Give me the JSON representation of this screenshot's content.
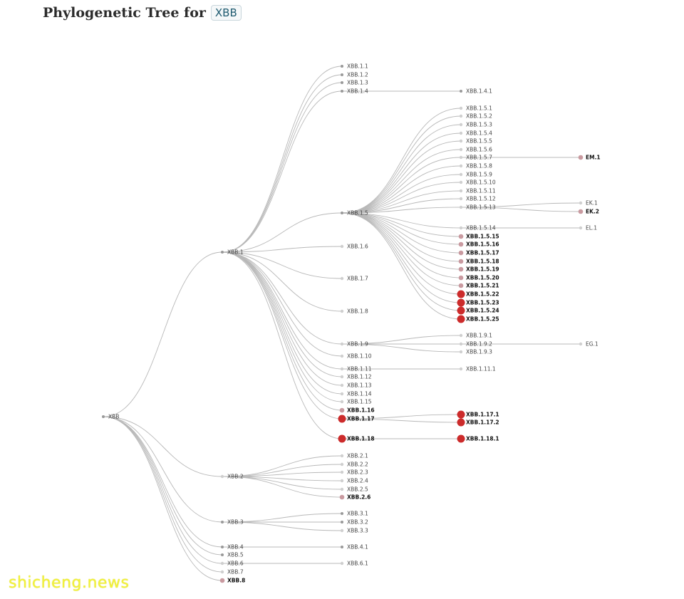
{
  "title": {
    "text": "Phylogenetic Tree for",
    "tag": "XBB"
  },
  "watermark": "shicheng.news",
  "colors": {
    "edge": "#b8b8b8",
    "node_small": "#999999",
    "node_light": "#cfcfcf",
    "node_pink": "#c99aa0",
    "node_red": "#cc2b2b"
  },
  "tree": {
    "name": "XBB",
    "kind": "small",
    "children": [
      {
        "name": "XBB.1",
        "kind": "small",
        "children": [
          {
            "name": "XBB.1.1",
            "kind": "small"
          },
          {
            "name": "XBB.1.2",
            "kind": "small"
          },
          {
            "name": "XBB.1.3",
            "kind": "small"
          },
          {
            "name": "XBB.1.4",
            "kind": "small",
            "children": [
              {
                "name": "XBB.1.4.1",
                "kind": "small"
              }
            ]
          },
          {
            "name": "XBB.1.5",
            "kind": "small",
            "children": [
              {
                "name": "XBB.1.5.1",
                "kind": "light"
              },
              {
                "name": "XBB.1.5.2",
                "kind": "light"
              },
              {
                "name": "XBB.1.5.3",
                "kind": "light"
              },
              {
                "name": "XBB.1.5.4",
                "kind": "light"
              },
              {
                "name": "XBB.1.5.5",
                "kind": "light"
              },
              {
                "name": "XBB.1.5.6",
                "kind": "light"
              },
              {
                "name": "XBB.1.5.7",
                "kind": "light",
                "children": [
                  {
                    "name": "EM.1",
                    "kind": "pink",
                    "bold": true
                  }
                ]
              },
              {
                "name": "XBB.1.5.8",
                "kind": "light"
              },
              {
                "name": "XBB.1.5.9",
                "kind": "light"
              },
              {
                "name": "XBB.1.5.10",
                "kind": "light"
              },
              {
                "name": "XBB.1.5.11",
                "kind": "light"
              },
              {
                "name": "XBB.1.5.12",
                "kind": "light"
              },
              {
                "name": "XBB.1.5.13",
                "kind": "light",
                "children": [
                  {
                    "name": "EK.1",
                    "kind": "light"
                  },
                  {
                    "name": "EK.2",
                    "kind": "pink",
                    "bold": true
                  }
                ]
              },
              {
                "name": "XBB.1.5.14",
                "kind": "light",
                "children": [
                  {
                    "name": "EL.1",
                    "kind": "light"
                  }
                ]
              },
              {
                "name": "XBB.1.5.15",
                "kind": "pink",
                "bold": true
              },
              {
                "name": "XBB.1.5.16",
                "kind": "pink",
                "bold": true
              },
              {
                "name": "XBB.1.5.17",
                "kind": "pink",
                "bold": true
              },
              {
                "name": "XBB.1.5.18",
                "kind": "pink",
                "bold": true
              },
              {
                "name": "XBB.1.5.19",
                "kind": "pink",
                "bold": true
              },
              {
                "name": "XBB.1.5.20",
                "kind": "pink",
                "bold": true
              },
              {
                "name": "XBB.1.5.21",
                "kind": "pink",
                "bold": true
              },
              {
                "name": "XBB.1.5.22",
                "kind": "red",
                "bold": true
              },
              {
                "name": "XBB.1.5.23",
                "kind": "red",
                "bold": true
              },
              {
                "name": "XBB.1.5.24",
                "kind": "red",
                "bold": true
              },
              {
                "name": "XBB.1.5.25",
                "kind": "red",
                "bold": true
              }
            ]
          },
          {
            "name": "XBB.1.6",
            "kind": "light"
          },
          {
            "name": "XBB.1.7",
            "kind": "light"
          },
          {
            "name": "XBB.1.8",
            "kind": "light"
          },
          {
            "name": "XBB.1.9",
            "kind": "light",
            "children": [
              {
                "name": "XBB.1.9.1",
                "kind": "light"
              },
              {
                "name": "XBB.1.9.2",
                "kind": "light",
                "children": [
                  {
                    "name": "EG.1",
                    "kind": "light"
                  }
                ]
              },
              {
                "name": "XBB.1.9.3",
                "kind": "light"
              }
            ]
          },
          {
            "name": "XBB.1.10",
            "kind": "light"
          },
          {
            "name": "XBB.1.11",
            "kind": "light",
            "children": [
              {
                "name": "XBB.1.11.1",
                "kind": "light"
              }
            ]
          },
          {
            "name": "XBB.1.12",
            "kind": "light"
          },
          {
            "name": "XBB.1.13",
            "kind": "light"
          },
          {
            "name": "XBB.1.14",
            "kind": "light"
          },
          {
            "name": "XBB.1.15",
            "kind": "light"
          },
          {
            "name": "XBB.1.16",
            "kind": "pink",
            "bold": true
          },
          {
            "name": "XBB.1.17",
            "kind": "red",
            "bold": true,
            "children": [
              {
                "name": "XBB.1.17.1",
                "kind": "red",
                "bold": true
              },
              {
                "name": "XBB.1.17.2",
                "kind": "red",
                "bold": true
              }
            ]
          },
          {
            "name": "XBB.1.18",
            "kind": "red",
            "bold": true,
            "children": [
              {
                "name": "XBB.1.18.1",
                "kind": "red",
                "bold": true
              }
            ]
          }
        ]
      },
      {
        "name": "XBB.2",
        "kind": "light",
        "children": [
          {
            "name": "XBB.2.1",
            "kind": "light"
          },
          {
            "name": "XBB.2.2",
            "kind": "light"
          },
          {
            "name": "XBB.2.3",
            "kind": "light"
          },
          {
            "name": "XBB.2.4",
            "kind": "light"
          },
          {
            "name": "XBB.2.5",
            "kind": "light"
          },
          {
            "name": "XBB.2.6",
            "kind": "pink",
            "bold": true
          }
        ]
      },
      {
        "name": "XBB.3",
        "kind": "small",
        "children": [
          {
            "name": "XBB.3.1",
            "kind": "small"
          },
          {
            "name": "XBB.3.2",
            "kind": "small"
          },
          {
            "name": "XBB.3.3",
            "kind": "light"
          }
        ]
      },
      {
        "name": "XBB.4",
        "kind": "small",
        "children": [
          {
            "name": "XBB.4.1",
            "kind": "small"
          }
        ]
      },
      {
        "name": "XBB.5",
        "kind": "small"
      },
      {
        "name": "XBB.6",
        "kind": "light",
        "children": [
          {
            "name": "XBB.6.1",
            "kind": "light"
          }
        ]
      },
      {
        "name": "XBB.7",
        "kind": "light"
      },
      {
        "name": "XBB.8",
        "kind": "pink",
        "bold": true
      }
    ]
  }
}
